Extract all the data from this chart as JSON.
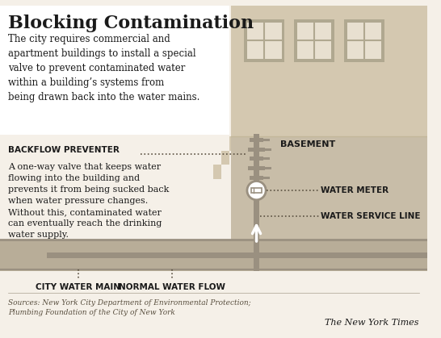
{
  "bg_color": "#f5f0e8",
  "building_color": "#d4c8b0",
  "building_dark": "#c4b89a",
  "basement_color": "#c8bda8",
  "ground_color": "#b8ad98",
  "pipe_color": "#9a9080",
  "window_color": "#e8e0d0",
  "window_border": "#b0a890",
  "white": "#ffffff",
  "text_color": "#1a1a1a",
  "text_light": "#3a3530",
  "dotted_color": "#5a5040",
  "title": "Blocking Contamination",
  "subtitle": "The city requires commercial and\napartment buildings to install a special\nvalve to prevent contaminated water\nwithin a building’s systems from\nbeing drawn back into the water mains.",
  "label_backflow": "BACKFLOW PREVENTER",
  "label_backflow_desc": "A one-way valve that keeps water\nflowing into the building and\nprevents it from being sucked back\nwhen water pressure changes.\nWithout this, contaminated water\ncan eventually reach the drinking\nwater supply.",
  "label_basement": "BASEMENT",
  "label_water_meter": "WATER METER",
  "label_water_service": "WATER SERVICE LINE",
  "label_city_main": "CITY WATER MAIN",
  "label_normal_flow": "NORMAL WATER FLOW",
  "source_text": "Sources: New York City Department of Environmental Protection;\nPlumbing Foundation of the City of New York",
  "nyt_text": "The New York Times"
}
